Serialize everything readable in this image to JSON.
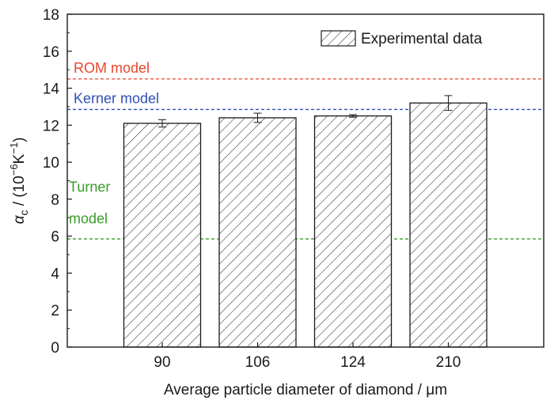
{
  "chart_data": {
    "type": "bar",
    "categories": [
      "90",
      "106",
      "124",
      "210"
    ],
    "values": [
      12.1,
      12.4,
      12.5,
      13.2
    ],
    "errors": [
      0.2,
      0.25,
      0.07,
      0.4
    ],
    "xlabel": "Average particle diameter of diamond / μm",
    "ylabel": {
      "symbol": "α",
      "subscript": "c",
      "prefix": " / (10",
      "exponent1": "−6",
      "mid": "K",
      "exponent2": "−1",
      "suffix": ")"
    },
    "ylim": [
      0,
      18
    ],
    "yticks": [
      0,
      2,
      4,
      6,
      8,
      10,
      12,
      14,
      16,
      18
    ],
    "bar_pattern": "diagonal-hatch",
    "legend": {
      "label": "Experimental data",
      "position": "top-right"
    },
    "reference_lines": [
      {
        "label": "ROM model",
        "value": 14.5,
        "color": "#e8462c"
      },
      {
        "label": "Kerner model",
        "value": 12.85,
        "color": "#2e4fb8"
      },
      {
        "label_lines": [
          "Turner",
          "model"
        ],
        "value": 5.85,
        "color": "#3a9a2a"
      }
    ]
  }
}
